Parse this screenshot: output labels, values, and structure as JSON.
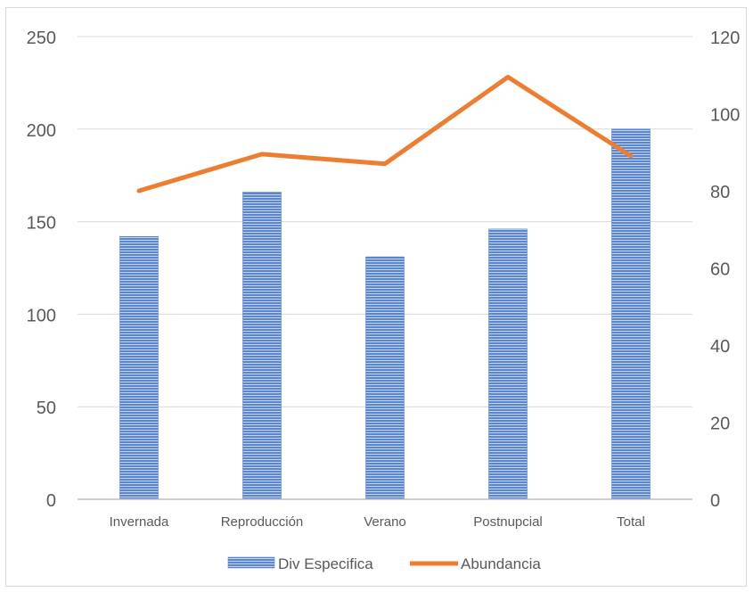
{
  "chart_data": {
    "type": "bar",
    "title": "",
    "xlabel": "",
    "ylabel": "",
    "y2label": "",
    "categories": [
      "Invernada",
      "Reproducción",
      "Verano",
      "Postnupcial",
      "Total"
    ],
    "series": [
      {
        "name": "Div Especifica",
        "type": "bar",
        "axis": "left",
        "values": [
          142,
          166,
          131,
          146,
          200
        ],
        "color": "#4472c4"
      },
      {
        "name": "Abundancia",
        "type": "line",
        "axis": "right",
        "values": [
          80,
          89.5,
          87,
          109.5,
          89
        ],
        "color": "#ed7d31"
      }
    ],
    "ylim": [
      0,
      250
    ],
    "y2lim": [
      0,
      120
    ],
    "yticks": [
      "0",
      "50",
      "100",
      "150",
      "200",
      "250"
    ],
    "y2ticks": [
      "0",
      "20",
      "40",
      "60",
      "80",
      "100",
      "120"
    ],
    "grid": true,
    "legend": "bottom-center"
  }
}
